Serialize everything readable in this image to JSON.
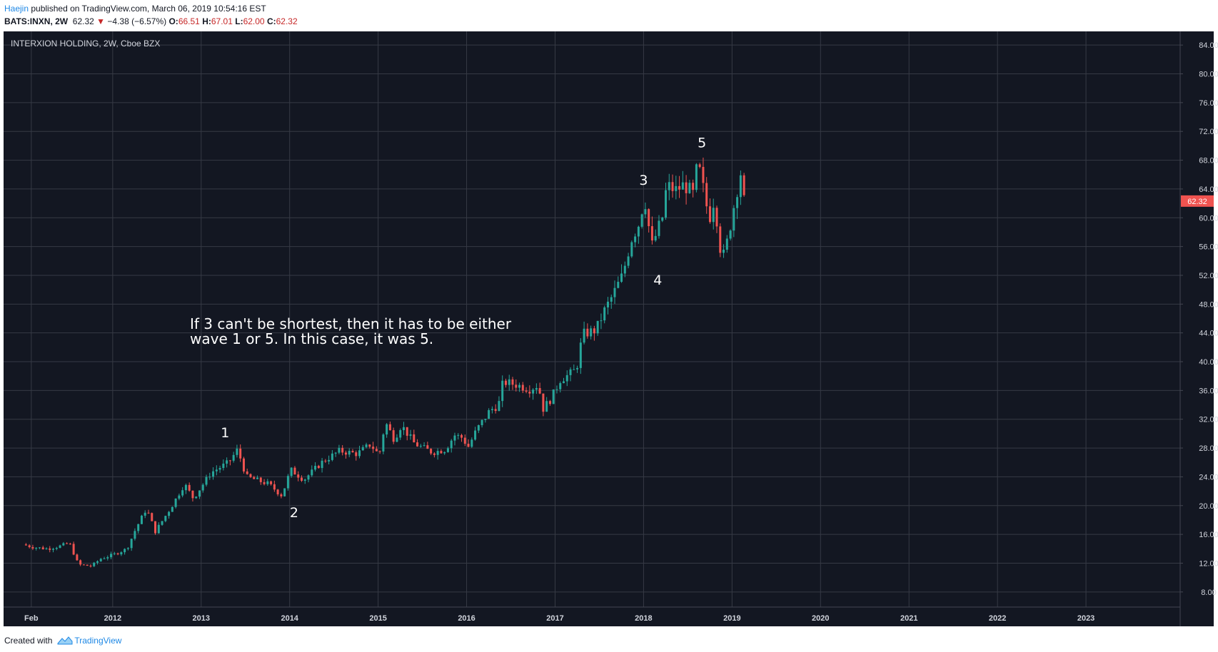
{
  "header": {
    "author": "Haejin",
    "published_text": " published on TradingView.com, March 06, 2019 10:54:16 EST",
    "symbol": "BATS:INXN, 2W",
    "last": "62.32",
    "change": "−4.38 (−6.57%)",
    "open_label": "O:",
    "open": "66.51",
    "high_label": "H:",
    "high": "67.01",
    "low_label": "L:",
    "low": "62.00",
    "close_label": "C:",
    "close": "62.32"
  },
  "footer": {
    "created_with": "Created with",
    "brand": "TradingView"
  },
  "colors": {
    "background": "#131722",
    "grid": "#363a45",
    "up": "#26a69a",
    "down": "#ef5350",
    "text": "#d1d4dc",
    "price_tag": "#ef5350"
  },
  "chart_data": {
    "type": "candlestick",
    "title": "INTERXION HOLDING, 2W, Cboe BZX",
    "x_ticks": [
      "Feb",
      "2012",
      "2013",
      "2014",
      "2015",
      "2016",
      "2017",
      "2018",
      "2019",
      "2020",
      "2021",
      "2022",
      "2023"
    ],
    "y_ticks": [
      "84.00",
      "80.00",
      "76.00",
      "72.00",
      "68.00",
      "64.00",
      "60.00",
      "56.00",
      "52.00",
      "48.00",
      "44.00",
      "40.00",
      "36.00",
      "32.00",
      "28.00",
      "24.00",
      "20.00",
      "16.00",
      "12.00",
      "8.00"
    ],
    "ylim": [
      5.9,
      85.9
    ],
    "xlim": [
      2010.92,
      2024.0
    ],
    "grid": true,
    "current_price": "62.32",
    "annotation_text": [
      "If 3 can't be shortest, then it has to be either",
      "wave 1 or 5. In this case, it was 5."
    ],
    "wave_labels": [
      {
        "label": "1",
        "x": 2013.27,
        "y": 29.5
      },
      {
        "label": "2",
        "x": 2014.05,
        "y": 18.4
      },
      {
        "label": "3",
        "x": 2018.0,
        "y": 64.6
      },
      {
        "label": "4",
        "x": 2018.16,
        "y": 50.7
      },
      {
        "label": "5",
        "x": 2018.66,
        "y": 69.8
      }
    ],
    "anchors": [
      [
        2011.02,
        14.6
      ],
      [
        2011.15,
        14.2
      ],
      [
        2011.3,
        14.0
      ],
      [
        2011.45,
        14.4
      ],
      [
        2011.55,
        14.8
      ],
      [
        2011.65,
        11.8
      ],
      [
        2011.8,
        11.6
      ],
      [
        2011.9,
        12.6
      ],
      [
        2012.05,
        13.2
      ],
      [
        2012.2,
        14.0
      ],
      [
        2012.3,
        16.8
      ],
      [
        2012.42,
        19.6
      ],
      [
        2012.52,
        16.4
      ],
      [
        2012.7,
        19.8
      ],
      [
        2012.85,
        23.0
      ],
      [
        2012.95,
        21.0
      ],
      [
        2013.15,
        24.6
      ],
      [
        2013.35,
        26.0
      ],
      [
        2013.45,
        27.8
      ],
      [
        2013.55,
        24.0
      ],
      [
        2013.8,
        23.0
      ],
      [
        2013.95,
        21.4
      ],
      [
        2014.05,
        25.0
      ],
      [
        2014.2,
        23.6
      ],
      [
        2014.4,
        26.0
      ],
      [
        2014.6,
        27.6
      ],
      [
        2014.8,
        27.2
      ],
      [
        2014.95,
        28.5
      ],
      [
        2015.05,
        27.0
      ],
      [
        2015.12,
        31.6
      ],
      [
        2015.22,
        29.2
      ],
      [
        2015.3,
        31.2
      ],
      [
        2015.45,
        28.6
      ],
      [
        2015.65,
        27.4
      ],
      [
        2015.8,
        27.8
      ],
      [
        2015.9,
        29.8
      ],
      [
        2016.0,
        29.4
      ],
      [
        2016.05,
        28.0
      ],
      [
        2016.15,
        30.5
      ],
      [
        2016.3,
        33.2
      ],
      [
        2016.4,
        34.0
      ],
      [
        2016.45,
        37.2
      ],
      [
        2016.6,
        36.8
      ],
      [
        2016.75,
        36.2
      ],
      [
        2016.85,
        36.8
      ],
      [
        2016.9,
        33.4
      ],
      [
        2017.0,
        35.0
      ],
      [
        2017.1,
        37.6
      ],
      [
        2017.2,
        38.2
      ],
      [
        2017.28,
        39.0
      ],
      [
        2017.35,
        43.8
      ],
      [
        2017.5,
        44.4
      ],
      [
        2017.6,
        47.2
      ],
      [
        2017.68,
        49.0
      ],
      [
        2017.8,
        52.0
      ],
      [
        2017.9,
        57.0
      ],
      [
        2017.98,
        59.0
      ],
      [
        2018.05,
        62.8
      ],
      [
        2018.13,
        56.0
      ],
      [
        2018.25,
        60.0
      ],
      [
        2018.3,
        64.5
      ],
      [
        2018.4,
        63.8
      ],
      [
        2018.5,
        64.6
      ],
      [
        2018.6,
        63.2
      ],
      [
        2018.65,
        67.8
      ],
      [
        2018.72,
        63.6
      ],
      [
        2018.78,
        59.8
      ],
      [
        2018.84,
        62.8
      ],
      [
        2018.9,
        56.0
      ],
      [
        2018.95,
        54.6
      ],
      [
        2019.02,
        59.0
      ],
      [
        2019.08,
        63.0
      ],
      [
        2019.14,
        66.5
      ],
      [
        2019.17,
        62.32
      ]
    ]
  }
}
